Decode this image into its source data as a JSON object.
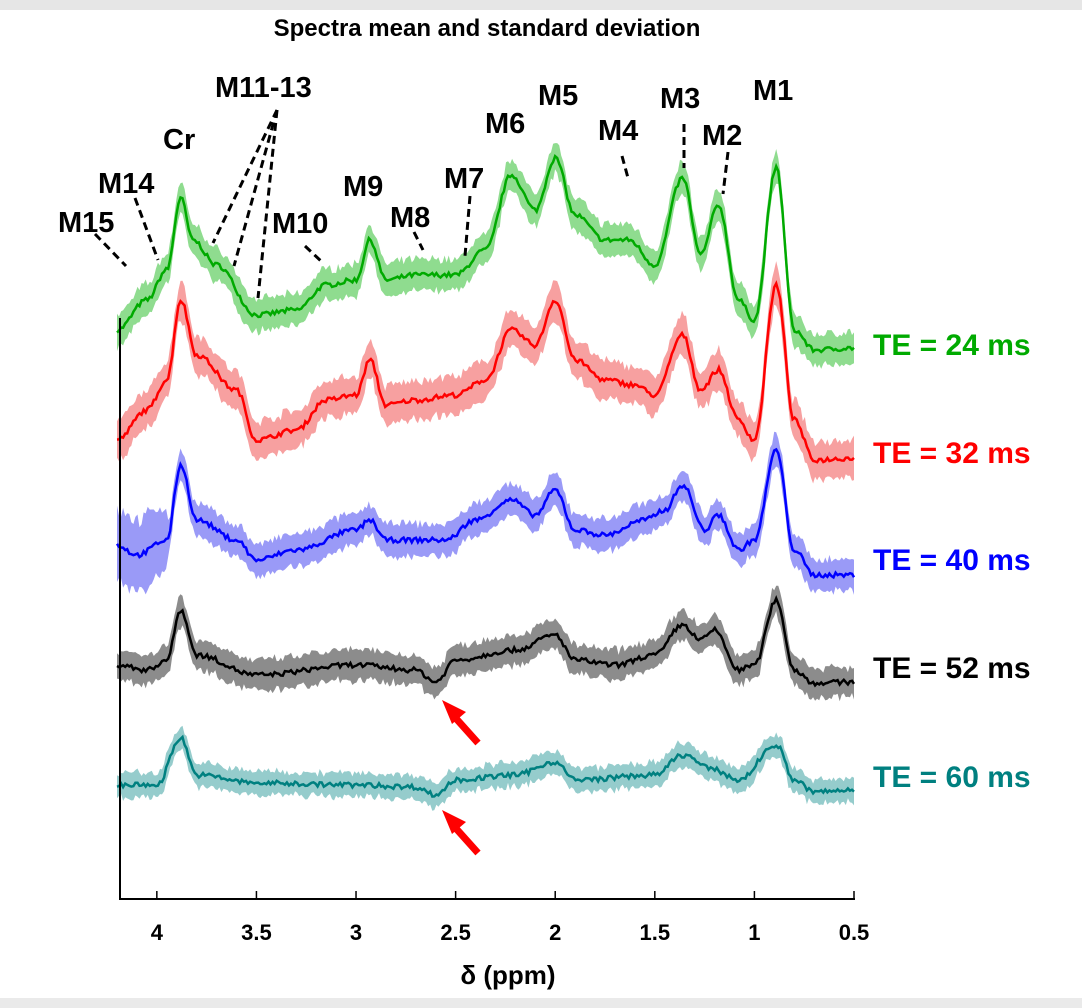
{
  "chart_data": {
    "type": "line",
    "title": "Spectra mean and standard deviation",
    "xlabel": "δ (ppm)",
    "ylabel": "",
    "xlim": [
      4.2,
      0.5
    ],
    "ylim": [
      0,
      80
    ],
    "x_reversed": true,
    "xticks": [
      4,
      3.5,
      3,
      2.5,
      2,
      1.5,
      1,
      0.5
    ],
    "xtick_labels": [
      "4",
      "3.5",
      "3",
      "2.5",
      "2",
      "1.5",
      "1",
      "0.5"
    ],
    "grid": false,
    "series": [
      {
        "name": "TE = 24 ms",
        "color": "#00aa00",
        "band_color": "#8fdc8f",
        "sd": 1.6,
        "x": [
          4.2,
          4.05,
          3.95,
          3.88,
          3.82,
          3.7,
          3.5,
          3.3,
          3.15,
          3.0,
          2.93,
          2.85,
          2.7,
          2.5,
          2.35,
          2.22,
          2.1,
          2.0,
          1.9,
          1.75,
          1.63,
          1.5,
          1.36,
          1.27,
          1.18,
          1.08,
          1.0,
          0.89,
          0.8,
          0.7,
          0.5
        ],
        "y": [
          57,
          60,
          63,
          70.2,
          66,
          63.5,
          58.5,
          59,
          61.5,
          62,
          66,
          62,
          62.5,
          62.5,
          65,
          72.5,
          69,
          74.2,
          68.5,
          66,
          66,
          63.5,
          72.2,
          64.5,
          69.5,
          60,
          58,
          73.2,
          57,
          55,
          55.2
        ]
      },
      {
        "name": "TE = 32 ms",
        "color": "#ff0000",
        "band_color": "#f7a0a0",
        "sd": 1.9,
        "x": [
          4.2,
          4.05,
          3.95,
          3.88,
          3.8,
          3.6,
          3.5,
          3.3,
          3.15,
          3.0,
          2.93,
          2.85,
          2.7,
          2.5,
          2.35,
          2.22,
          2.1,
          2.0,
          1.9,
          1.75,
          1.6,
          1.5,
          1.36,
          1.27,
          1.18,
          1.08,
          1.0,
          0.89,
          0.8,
          0.7,
          0.5
        ],
        "y": [
          46,
          49,
          52,
          60,
          54.5,
          51,
          46,
          47,
          50,
          50.5,
          54,
          49.5,
          50,
          50.5,
          52,
          57,
          55.5,
          60,
          54,
          52,
          51.5,
          50.5,
          56.5,
          51,
          53,
          48,
          46,
          61.5,
          48,
          44,
          44.2
        ]
      },
      {
        "name": "TE = 40 ms",
        "color": "#0000ff",
        "band_color": "#9a9af7",
        "sd": 1.6,
        "x": [
          4.2,
          4.1,
          3.95,
          3.88,
          3.8,
          3.6,
          3.5,
          3.3,
          3.0,
          2.93,
          2.85,
          2.7,
          2.55,
          2.4,
          2.22,
          2.1,
          2.0,
          1.9,
          1.75,
          1.55,
          1.45,
          1.36,
          1.25,
          1.18,
          1.08,
          1.0,
          0.89,
          0.8,
          0.7,
          0.5
        ],
        "y": [
          35.5,
          34.5,
          36,
          43.5,
          38,
          36,
          34,
          35,
          37,
          38,
          36,
          36,
          36,
          38,
          40,
          38.5,
          41,
          37,
          36.5,
          38,
          39,
          41.5,
          37,
          38.5,
          35,
          36,
          45,
          35,
          32.5,
          32.5
        ]
      },
      {
        "name": "TE = 52 ms",
        "color": "#000000",
        "band_color": "#8c8c8c",
        "sd": 1.5,
        "x": [
          4.2,
          4.05,
          3.95,
          3.88,
          3.8,
          3.5,
          3.0,
          2.7,
          2.6,
          2.5,
          2.2,
          2.0,
          1.9,
          1.7,
          1.5,
          1.36,
          1.27,
          1.2,
          1.08,
          1.0,
          0.89,
          0.8,
          0.7,
          0.5
        ],
        "y": [
          23.5,
          23,
          24,
          29,
          24.5,
          22.5,
          23.5,
          23,
          21.8,
          24,
          25,
          26.5,
          24,
          23.5,
          24.5,
          27.5,
          26,
          27,
          23,
          23.5,
          30,
          23,
          21.7,
          21.8
        ]
      },
      {
        "name": "TE = 60 ms",
        "color": "#008080",
        "band_color": "#95cccc",
        "sd": 1.2,
        "x": [
          4.2,
          4.0,
          3.88,
          3.8,
          3.5,
          3.0,
          2.7,
          2.6,
          2.5,
          2.2,
          2.0,
          1.9,
          1.5,
          1.36,
          1.2,
          1.08,
          0.89,
          0.8,
          0.7,
          0.5
        ],
        "y": [
          11.5,
          11.5,
          16.2,
          12.5,
          11.7,
          11.5,
          11.3,
          10.5,
          12,
          12.5,
          13.8,
          12,
          12.5,
          14.5,
          13,
          12,
          15.5,
          12,
          10.8,
          11
        ]
      }
    ],
    "annotations": [
      "M15",
      "M14",
      "Cr",
      "M11-13",
      "M10",
      "M9",
      "M8",
      "M7",
      "M6",
      "M5",
      "M4",
      "M3",
      "M2",
      "M1"
    ],
    "arrows": [
      {
        "at_ppm": 2.6,
        "series": "TE = 52 ms",
        "color": "#ff0000"
      },
      {
        "at_ppm": 2.6,
        "series": "TE = 60 ms",
        "color": "#ff0000"
      }
    ]
  }
}
